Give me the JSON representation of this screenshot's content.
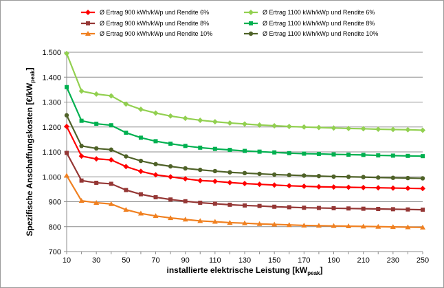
{
  "chart_data": {
    "type": "line",
    "xlabel": "installierte elektrische Leistung [kW",
    "xlabel_sub": "peak",
    "xlabel_end": "]",
    "ylabel": "Spezifische Anschaffungskosten [€/kW",
    "ylabel_sub": "peak",
    "ylabel_end": "]",
    "xlim": [
      10,
      250
    ],
    "ylim": [
      700,
      1500
    ],
    "x_ticks": [
      10,
      30,
      50,
      70,
      90,
      110,
      130,
      150,
      170,
      190,
      210,
      230,
      250
    ],
    "y_ticks": [
      700,
      800,
      900,
      1000,
      1100,
      1200,
      1300,
      1400,
      1500
    ],
    "y_tick_labels": [
      "700",
      "800",
      "900",
      "1.000",
      "1.100",
      "1.200",
      "1.300",
      "1.400",
      "1.500"
    ],
    "grid": "horizontal",
    "legend_position": "top",
    "x": [
      10,
      20,
      30,
      40,
      50,
      60,
      70,
      80,
      90,
      100,
      110,
      120,
      130,
      140,
      150,
      160,
      170,
      180,
      190,
      200,
      210,
      220,
      230,
      240,
      250
    ],
    "series": [
      {
        "name": "Ø Ertrag  900 kWh/kWp und Rendite 6%",
        "color": "#ff0000",
        "marker": "diamond",
        "values": [
          1202,
          1083,
          1072,
          1068,
          1041,
          1022,
          1008,
          1000,
          992,
          985,
          982,
          977,
          973,
          970,
          967,
          964,
          962,
          960,
          959,
          958,
          957,
          956,
          955,
          954,
          953
        ]
      },
      {
        "name": "Ø Ertrag  900 kWh/kWp und Rendite 8%",
        "color": "#953735",
        "marker": "square",
        "values": [
          1096,
          985,
          976,
          972,
          947,
          930,
          918,
          909,
          902,
          896,
          892,
          888,
          885,
          883,
          880,
          878,
          876,
          875,
          874,
          873,
          872,
          871,
          870,
          869,
          868
        ]
      },
      {
        "name": "Ø Ertrag  900 kWh/kWp und Rendite 10%",
        "color": "#f08020",
        "marker": "triangle",
        "values": [
          1005,
          904,
          896,
          891,
          868,
          853,
          843,
          835,
          829,
          823,
          820,
          816,
          814,
          811,
          809,
          807,
          805,
          804,
          803,
          802,
          801,
          800,
          799,
          798,
          797
        ]
      },
      {
        "name": "Ø Ertrag  1100 kWh/kWp und Rendite 6%",
        "color": "#92d050",
        "marker": "diamond",
        "values": [
          1495,
          1344,
          1332,
          1325,
          1292,
          1271,
          1256,
          1244,
          1235,
          1227,
          1221,
          1216,
          1212,
          1208,
          1205,
          1202,
          1200,
          1198,
          1196,
          1194,
          1193,
          1191,
          1190,
          1189,
          1187
        ]
      },
      {
        "name": "Ø Ertrag  1100 kWh/kWp und Rendite 8%",
        "color": "#00b050",
        "marker": "square",
        "values": [
          1360,
          1225,
          1213,
          1207,
          1177,
          1157,
          1143,
          1133,
          1124,
          1117,
          1112,
          1108,
          1104,
          1101,
          1098,
          1095,
          1093,
          1092,
          1090,
          1089,
          1088,
          1086,
          1085,
          1084,
          1083
        ]
      },
      {
        "name": "Ø Ertrag  1100 kWh/kWp und Rendite 10%",
        "color": "#4f6228",
        "marker": "circle",
        "values": [
          1247,
          1124,
          1114,
          1109,
          1082,
          1064,
          1051,
          1042,
          1034,
          1028,
          1023,
          1018,
          1015,
          1012,
          1009,
          1007,
          1005,
          1003,
          1001,
          1000,
          999,
          997,
          996,
          995,
          994
        ]
      }
    ]
  }
}
